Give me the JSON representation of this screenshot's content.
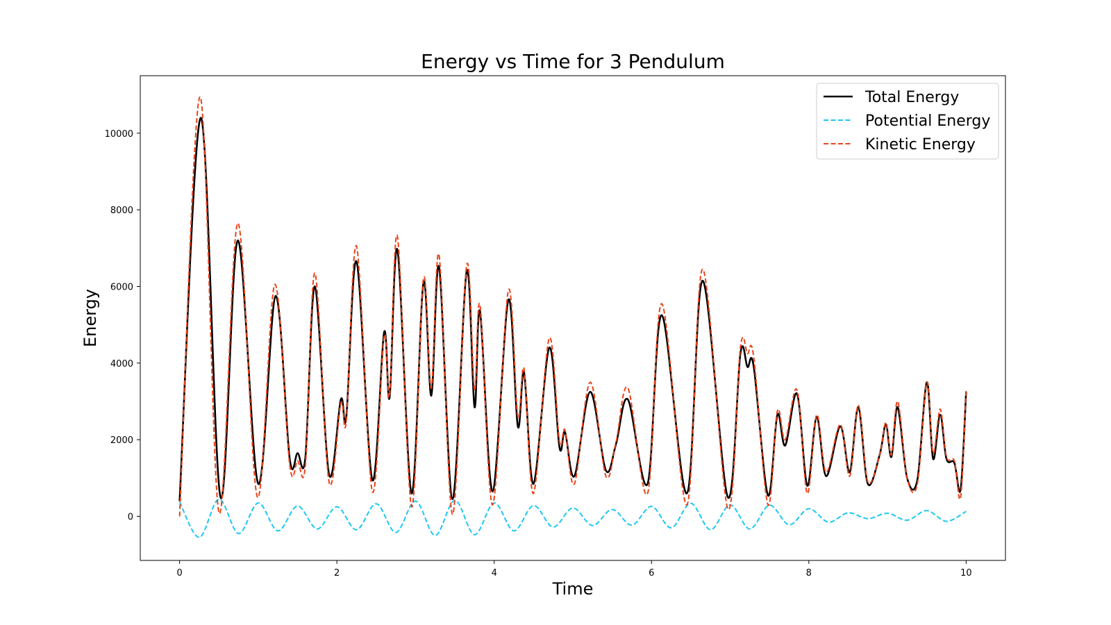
{
  "chart_data": {
    "type": "line",
    "title": "Energy vs Time for 3 Pendulum",
    "xlabel": "Time",
    "ylabel": "Energy",
    "xlim": [
      -0.5,
      10.5
    ],
    "ylim": [
      -1150,
      11500
    ],
    "xticks": [
      0,
      2,
      4,
      6,
      8,
      10
    ],
    "yticks": [
      0,
      2000,
      4000,
      6000,
      8000,
      10000
    ],
    "grid": false,
    "legend_position": "top-right",
    "series": [
      {
        "name": "Total Energy",
        "color": "#000000",
        "style": "solid",
        "x": [
          0,
          0.27,
          0.52,
          0.74,
          1.0,
          1.22,
          1.4,
          1.5,
          1.6,
          1.72,
          1.9,
          2.05,
          2.12,
          2.25,
          2.45,
          2.6,
          2.67,
          2.77,
          2.95,
          3.1,
          3.2,
          3.3,
          3.47,
          3.65,
          3.75,
          3.82,
          3.98,
          4.18,
          4.3,
          4.38,
          4.5,
          4.7,
          4.83,
          4.9,
          5.02,
          5.22,
          5.42,
          5.55,
          5.7,
          5.95,
          6.13,
          6.45,
          6.65,
          6.97,
          7.13,
          7.22,
          7.3,
          7.48,
          7.6,
          7.7,
          7.85,
          7.98,
          8.1,
          8.22,
          8.4,
          8.52,
          8.63,
          8.75,
          8.9,
          8.98,
          9.05,
          9.13,
          9.25,
          9.38,
          9.5,
          9.58,
          9.67,
          9.75,
          9.85,
          9.93,
          10.0
        ],
        "y": [
          400,
          10400,
          500,
          7200,
          850,
          5750,
          1500,
          1650,
          1550,
          6000,
          1100,
          3050,
          2600,
          6650,
          950,
          4800,
          3100,
          6950,
          600,
          6100,
          3150,
          6500,
          450,
          6400,
          2850,
          5350,
          650,
          5650,
          2350,
          3750,
          850,
          4400,
          1800,
          2200,
          1050,
          3250,
          1200,
          1900,
          3050,
          850,
          5250,
          600,
          6150,
          500,
          4250,
          3900,
          3900,
          550,
          2650,
          1850,
          3200,
          800,
          2600,
          1050,
          2350,
          1150,
          2850,
          850,
          1600,
          2400,
          1550,
          2850,
          1000,
          950,
          3500,
          1500,
          2650,
          1500,
          1400,
          700,
          3250
        ]
      },
      {
        "name": "Potential Energy",
        "color": "#1ac8f0",
        "style": "dashed",
        "x": [
          0,
          0.25,
          0.5,
          0.75,
          1.0,
          1.25,
          1.5,
          1.75,
          2.0,
          2.25,
          2.5,
          2.75,
          3.0,
          3.25,
          3.5,
          3.75,
          4.0,
          4.25,
          4.5,
          4.75,
          5.0,
          5.25,
          5.5,
          5.75,
          6.0,
          6.25,
          6.5,
          6.75,
          7.0,
          7.25,
          7.5,
          7.75,
          8.0,
          8.25,
          8.5,
          8.75,
          9.0,
          9.25,
          9.5,
          9.75,
          10.0
        ],
        "y": [
          380,
          -550,
          450,
          -450,
          350,
          -380,
          270,
          -330,
          250,
          -350,
          330,
          -420,
          400,
          -500,
          420,
          -480,
          350,
          -380,
          280,
          -280,
          220,
          -240,
          180,
          -230,
          260,
          -300,
          340,
          -350,
          300,
          -330,
          290,
          -220,
          200,
          -150,
          90,
          -60,
          80,
          -100,
          150,
          -130,
          130
        ]
      },
      {
        "name": "Kinetic Energy",
        "color": "#e8431a",
        "style": "dashed",
        "x": [
          0,
          0.26,
          0.5,
          0.74,
          0.99,
          1.21,
          1.4,
          1.5,
          1.6,
          1.72,
          1.9,
          2.05,
          2.12,
          2.25,
          2.45,
          2.6,
          2.67,
          2.77,
          2.95,
          3.1,
          3.2,
          3.3,
          3.47,
          3.65,
          3.75,
          3.82,
          3.98,
          4.18,
          4.3,
          4.38,
          4.5,
          4.7,
          4.83,
          4.9,
          5.02,
          5.22,
          5.42,
          5.55,
          5.7,
          5.95,
          6.13,
          6.45,
          6.65,
          6.97,
          7.13,
          7.22,
          7.3,
          7.48,
          7.6,
          7.7,
          7.85,
          7.98,
          8.1,
          8.22,
          8.4,
          8.52,
          8.63,
          8.75,
          8.9,
          8.98,
          9.05,
          9.13,
          9.25,
          9.38,
          9.5,
          9.58,
          9.67,
          9.75,
          9.85,
          9.93,
          10.0
        ],
        "y": [
          0,
          10950,
          100,
          7650,
          500,
          6050,
          1350,
          1450,
          1350,
          6350,
          900,
          2950,
          2500,
          7050,
          650,
          4700,
          3150,
          7300,
          250,
          6200,
          3350,
          6800,
          50,
          6550,
          3300,
          5500,
          300,
          5900,
          2600,
          3850,
          600,
          4650,
          1950,
          2250,
          850,
          3500,
          1050,
          1950,
          3350,
          600,
          5550,
          300,
          6450,
          200,
          4400,
          4250,
          4150,
          300,
          2750,
          2000,
          3300,
          600,
          2650,
          1150,
          2400,
          1050,
          2900,
          900,
          1600,
          2450,
          1600,
          3000,
          1000,
          850,
          3500,
          1650,
          2800,
          1550,
          1450,
          500,
          3300
        ]
      }
    ]
  }
}
